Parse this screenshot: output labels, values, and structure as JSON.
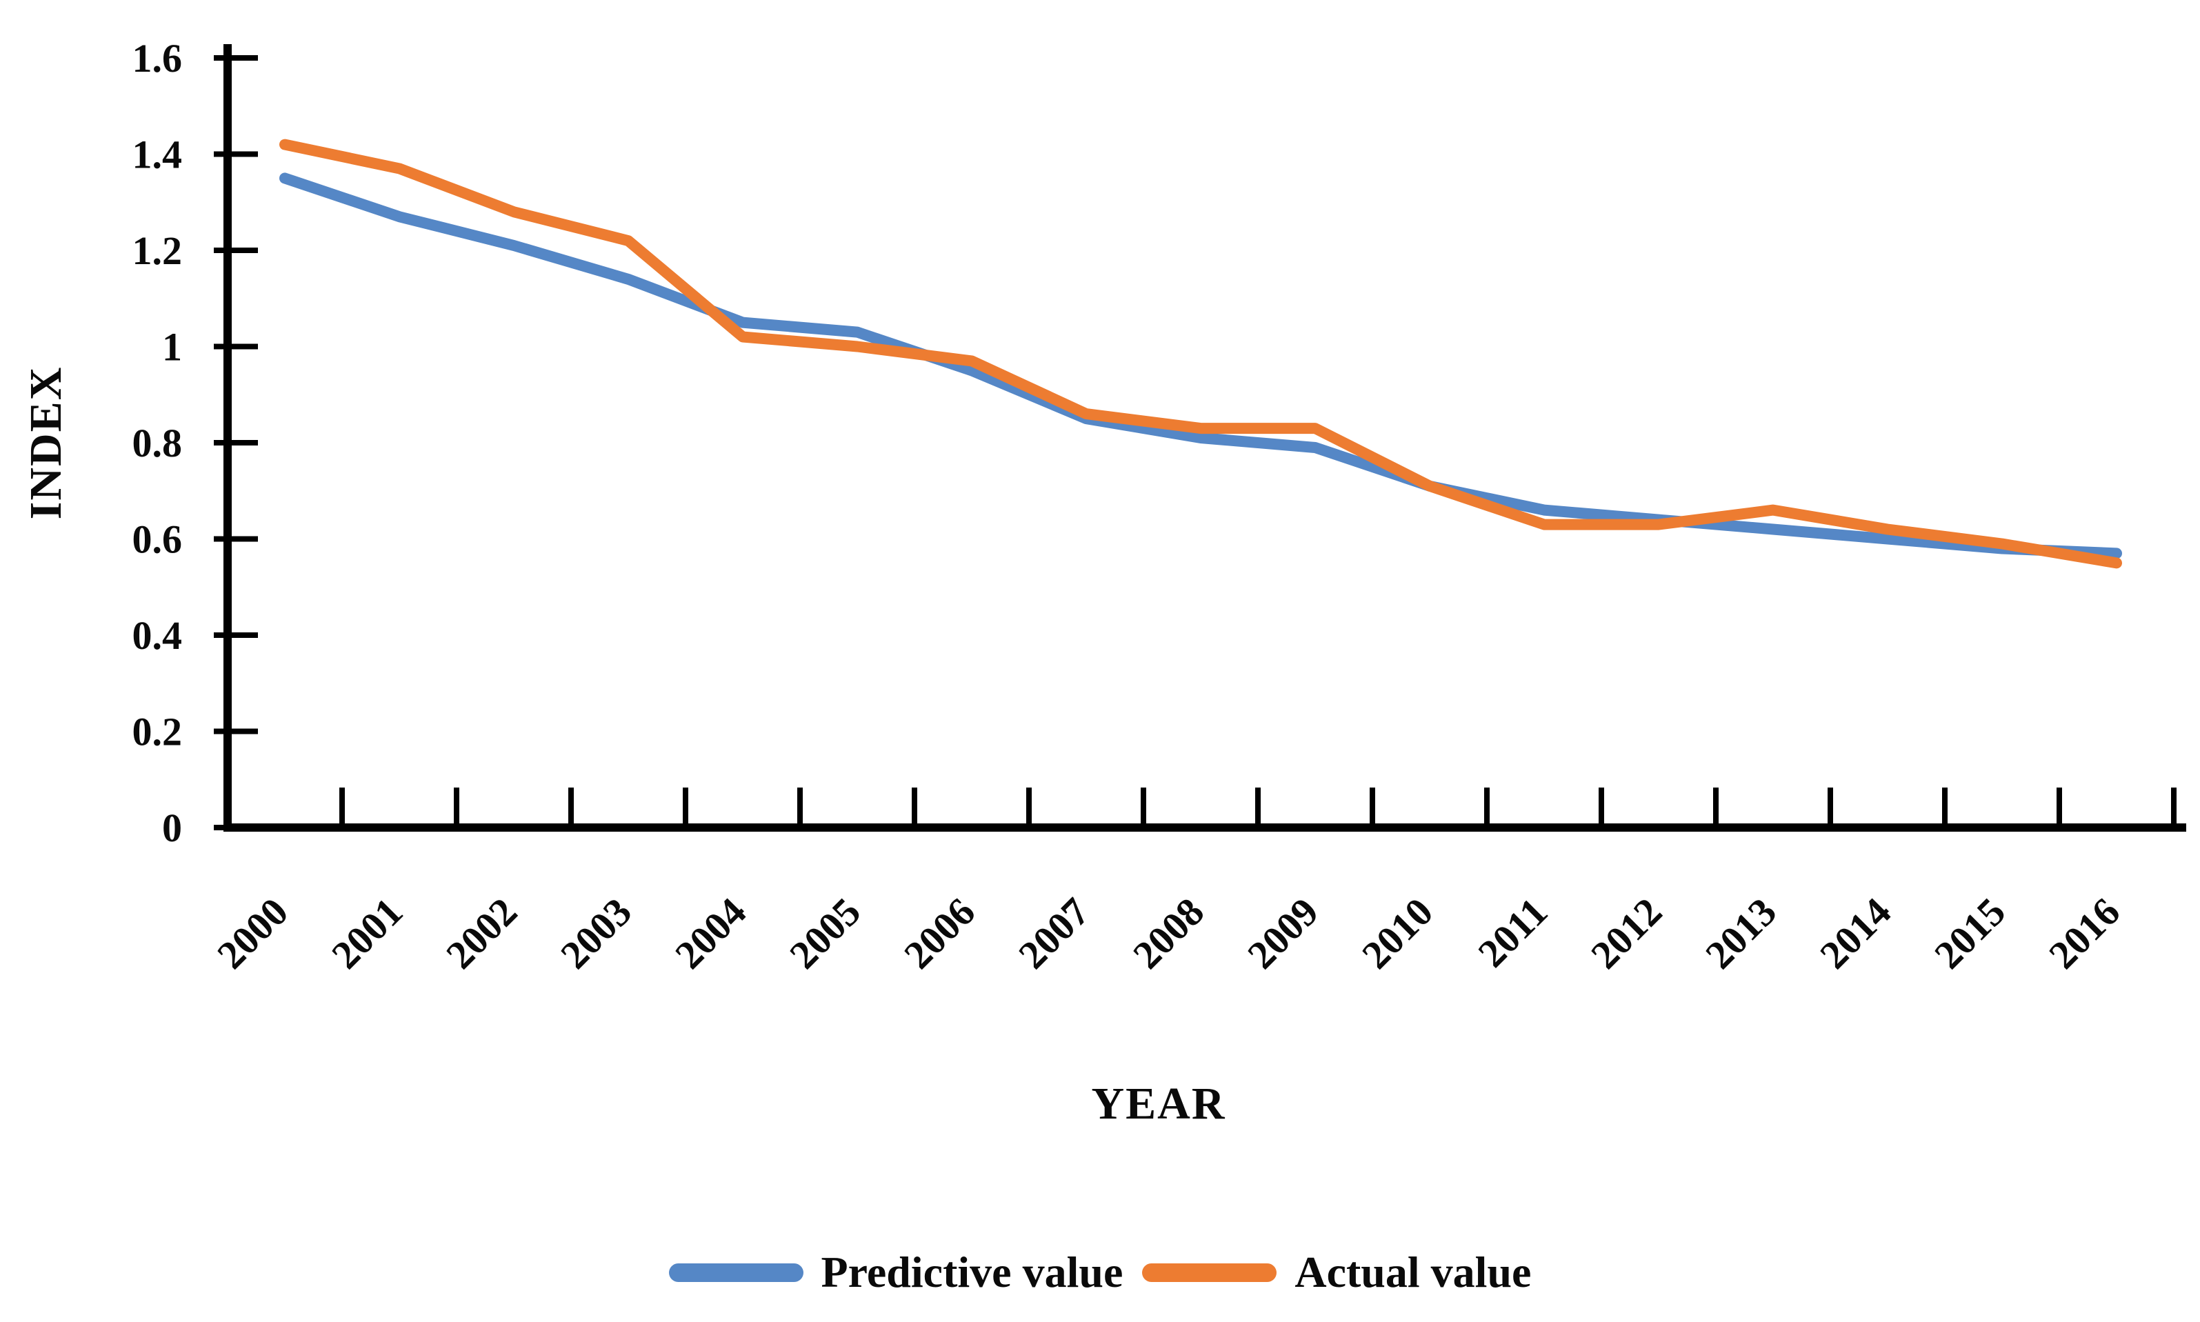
{
  "figure": {
    "background_color": "#ffffff",
    "axis_color": "#000000",
    "text_color": "#0a0a0a"
  },
  "chart_data": {
    "type": "line",
    "title": "",
    "xlabel": "YEAR",
    "ylabel": "INDEX",
    "x_categories": [
      "2000",
      "2001",
      "2002",
      "2003",
      "2004",
      "2005",
      "2006",
      "2007",
      "2008",
      "2009",
      "2010",
      "2011",
      "2012",
      "2013",
      "2014",
      "2015",
      "2016"
    ],
    "series": [
      {
        "name": "Predictive value",
        "color": "#5587C6",
        "values": [
          1.35,
          1.27,
          1.21,
          1.14,
          1.05,
          1.03,
          0.95,
          0.85,
          0.81,
          0.79,
          0.71,
          0.66,
          0.64,
          0.62,
          0.6,
          0.58,
          0.57
        ]
      },
      {
        "name": "Actual value",
        "color": "#ED7C31",
        "values": [
          1.42,
          1.37,
          1.28,
          1.22,
          1.02,
          1.0,
          0.97,
          0.86,
          0.83,
          0.83,
          0.71,
          0.63,
          0.63,
          0.66,
          0.62,
          0.59,
          0.55
        ]
      }
    ],
    "ylim": [
      0,
      1.6
    ],
    "ytick_labels": [
      "0",
      "0.2",
      "0.4",
      "0.6",
      "0.8",
      "1",
      "1.2",
      "1.4",
      "1.6"
    ],
    "xtick_label_rotation_deg": -45,
    "grid": false,
    "legend_position": "bottom-center"
  }
}
